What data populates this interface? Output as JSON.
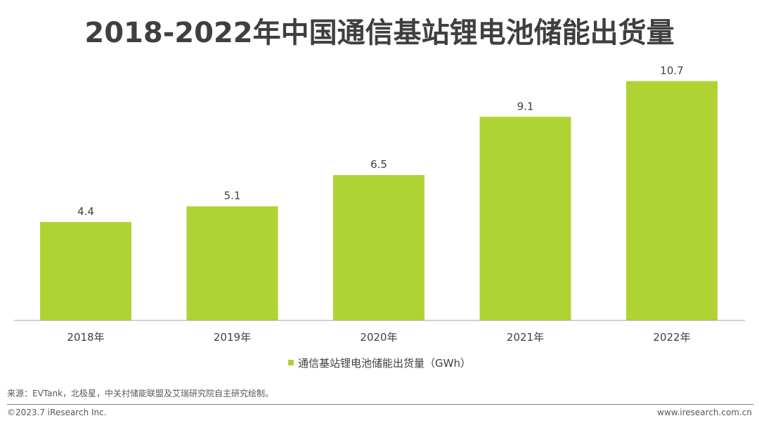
{
  "page": {
    "title": "2018-2022年中国通信基站锂电池储能出货量",
    "source": "来源：EVTank，北极星，中关村储能联盟及艾瑞研究院自主研究绘制。",
    "copyright": "©2023.7 iResearch Inc.",
    "website": "www.iresearch.com.cn"
  },
  "chart_data": {
    "type": "bar",
    "title": "2018-2022年中国通信基站锂电池储能出货量",
    "categories": [
      "2018年",
      "2019年",
      "2020年",
      "2021年",
      "2022年"
    ],
    "series": [
      {
        "name": "通信基站锂电池储能出货量（GWh）",
        "values": [
          4.4,
          5.1,
          6.5,
          9.1,
          10.7
        ],
        "color": "#b0d334"
      }
    ],
    "value_labels": [
      "4.4",
      "5.1",
      "6.5",
      "9.1",
      "10.7"
    ],
    "xlabel": "",
    "ylabel": "",
    "ylim": [
      0,
      12
    ],
    "grid": false,
    "legend_position": "bottom"
  }
}
